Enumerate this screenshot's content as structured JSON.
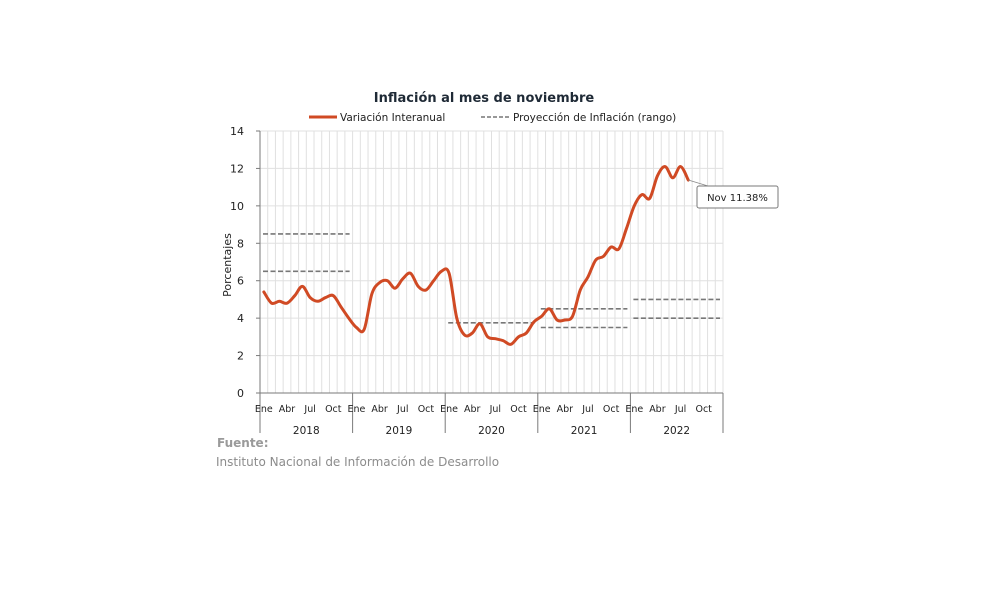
{
  "chart_data": {
    "type": "line",
    "title": "Inflación al mes de noviembre",
    "ylabel": "Porcentajes",
    "ylim": [
      0,
      14
    ],
    "yticks": [
      0,
      2,
      4,
      6,
      8,
      10,
      12,
      14
    ],
    "grid": true,
    "legend_position": "top",
    "month_labels": [
      "Ene",
      "Abr",
      "Jul",
      "Oct"
    ],
    "years": [
      "2018",
      "2019",
      "2020",
      "2021",
      "2022"
    ],
    "series": [
      {
        "name": "Variación Interanual",
        "color": "#d04a24",
        "style": "solid",
        "values": [
          5.4,
          4.8,
          4.9,
          4.8,
          5.2,
          5.7,
          5.1,
          4.9,
          5.1,
          5.2,
          4.6,
          4.0,
          3.5,
          3.4,
          5.3,
          5.9,
          6.0,
          5.6,
          6.1,
          6.4,
          5.7,
          5.5,
          6.0,
          6.5,
          6.4,
          4.0,
          3.1,
          3.2,
          3.7,
          3.0,
          2.9,
          2.8,
          2.6,
          3.0,
          3.2,
          3.8,
          4.1,
          4.5,
          3.9,
          3.9,
          4.1,
          5.5,
          6.2,
          7.1,
          7.3,
          7.8,
          7.7,
          8.8,
          10.0,
          10.6,
          10.4,
          11.6,
          12.1,
          11.5,
          12.1,
          11.38
        ],
        "callout": "Nov 11.38%"
      },
      {
        "name": "Proyección de Inflación (rango)",
        "color": "#777777",
        "style": "dashed",
        "ranges": [
          {
            "year": "2018",
            "low": 6.5,
            "high": 8.5
          },
          {
            "year": "2020",
            "low": 3.75,
            "high": 3.75
          },
          {
            "year": "2021",
            "low": 3.5,
            "high": 4.5
          },
          {
            "year": "2022",
            "low": 4.0,
            "high": 5.0
          }
        ]
      }
    ]
  },
  "source": {
    "label": "Fuente:",
    "text": "Instituto Nacional de Información de  Desarrollo"
  }
}
